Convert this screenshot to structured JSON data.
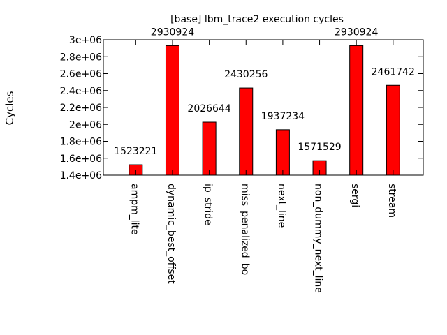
{
  "chart_data": {
    "type": "bar",
    "title": "[base] lbm_trace2 execution cycles",
    "ylabel": "Cycles",
    "xlabel": "",
    "ylim": [
      1400000,
      3000000
    ],
    "yticks": [
      1400000,
      1600000,
      1800000,
      2000000,
      2200000,
      2400000,
      2600000,
      2800000,
      3000000
    ],
    "ytick_labels": [
      "1.4e+06",
      "1.6e+06",
      "1.8e+06",
      "2e+06",
      "2.2e+06",
      "2.4e+06",
      "2.6e+06",
      "2.8e+06",
      "3e+06"
    ],
    "categories": [
      "ampm_lite",
      "dynamic_best_offset",
      "ip_stride",
      "miss_penalized_bo",
      "next_line",
      "non_dummy_next_line",
      "sergi",
      "stream"
    ],
    "values": [
      1523221,
      2930924,
      2026644,
      2430256,
      1937234,
      1571529,
      2930924,
      2461742
    ],
    "data_labels": [
      "1523221",
      "2930924",
      "2026644",
      "2430256",
      "1937234",
      "1571529",
      "2930924",
      "2461742"
    ],
    "bar_color": "#ff0000",
    "grid": false,
    "legend": "none"
  }
}
